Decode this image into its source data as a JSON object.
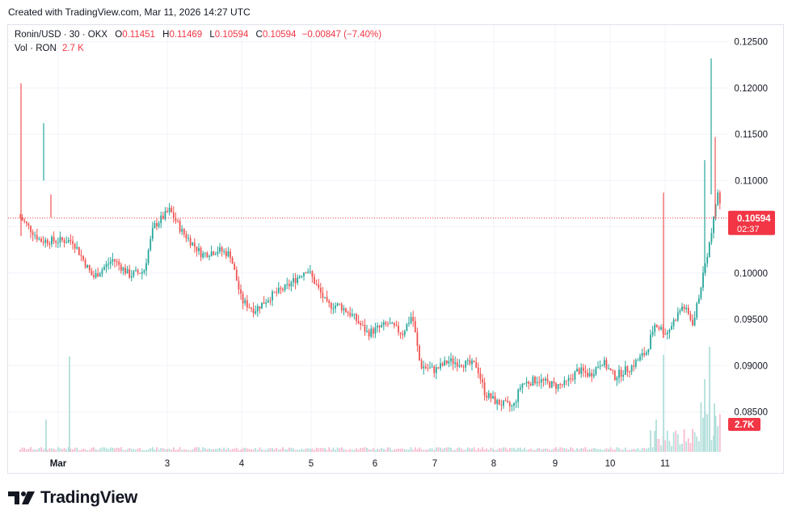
{
  "header": {
    "created_text": "Created with TradingView.com, Mar 11, 2026 14:27 UTC"
  },
  "legend": {
    "symbol": "Ronin/USD · 30 · OKX",
    "o_label": "O",
    "o_value": "0.11451",
    "h_label": "H",
    "h_value": "0.11469",
    "l_label": "L",
    "l_value": "0.10594",
    "c_label": "C",
    "c_value": "0.10594",
    "change": "−0.00847 (−7.40%)",
    "vol_label": "Vol · RON",
    "vol_value": "2.7 K"
  },
  "branding": {
    "logo_text": "TradingView"
  },
  "colors": {
    "up": "#26a69a",
    "down": "#ef5350",
    "price_badge": "#f23645",
    "grid": "#f0f3fa"
  },
  "chart_data": {
    "type": "candlestick",
    "symbol": "Ronin/USD",
    "interval": "30",
    "exchange": "OKX",
    "x_tick_labels": [
      "Mar",
      "3",
      "4",
      "5",
      "6",
      "7",
      "8",
      "9",
      "10",
      "11"
    ],
    "y_tick_labels": [
      "0.12500",
      "0.12000",
      "0.11500",
      "0.11000",
      "0.10500",
      "0.10000",
      "0.09500",
      "0.09000",
      "0.08500"
    ],
    "ylim": [
      0.0805,
      0.1268
    ],
    "last_price": {
      "value": "0.10594",
      "countdown": "02:37"
    },
    "volume_label": "2.7K",
    "grid": true,
    "series": [
      {
        "name": "price",
        "x": [
          "Mar 1",
          "Mar 2",
          "Mar 3",
          "Mar 4",
          "Mar 5",
          "Mar 6",
          "Mar 7",
          "Mar 8",
          "Mar 9",
          "Mar 10",
          "Mar 11"
        ],
        "values": [
          0.104,
          0.1,
          0.1065,
          0.096,
          0.1,
          0.0935,
          0.0905,
          0.086,
          0.0885,
          0.089,
          0.1059
        ]
      }
    ]
  }
}
